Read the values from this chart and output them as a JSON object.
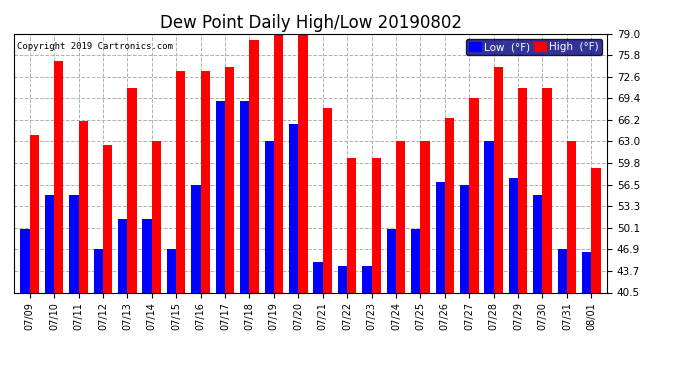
{
  "title": "Dew Point Daily High/Low 20190802",
  "copyright": "Copyright 2019 Cartronics.com",
  "dates": [
    "07/09",
    "07/10",
    "07/11",
    "07/12",
    "07/13",
    "07/14",
    "07/15",
    "07/16",
    "07/17",
    "07/18",
    "07/19",
    "07/20",
    "07/21",
    "07/22",
    "07/23",
    "07/24",
    "07/25",
    "07/26",
    "07/27",
    "07/28",
    "07/29",
    "07/30",
    "07/31",
    "08/01"
  ],
  "high": [
    64.0,
    75.0,
    66.0,
    62.5,
    71.0,
    63.0,
    73.5,
    73.5,
    74.0,
    78.0,
    79.0,
    79.0,
    68.0,
    60.5,
    60.5,
    63.0,
    63.0,
    66.5,
    69.5,
    74.0,
    71.0,
    71.0,
    63.0,
    59.0
  ],
  "low": [
    50.0,
    55.0,
    55.0,
    47.0,
    51.5,
    51.5,
    47.0,
    56.5,
    69.0,
    69.0,
    63.0,
    65.5,
    45.0,
    44.5,
    44.5,
    50.0,
    50.0,
    57.0,
    56.5,
    63.0,
    57.5,
    55.0,
    47.0,
    46.5
  ],
  "ylim": [
    40.5,
    79.0
  ],
  "yticks": [
    40.5,
    43.7,
    46.9,
    50.1,
    53.3,
    56.5,
    59.8,
    63.0,
    66.2,
    69.4,
    72.6,
    75.8,
    79.0
  ],
  "high_color": "#ff0000",
  "low_color": "#0000ff",
  "background_color": "#ffffff",
  "grid_color": "#b0b0b0",
  "title_fontsize": 12,
  "legend_low_label": "Low  (°F)",
  "legend_high_label": "High  (°F)"
}
